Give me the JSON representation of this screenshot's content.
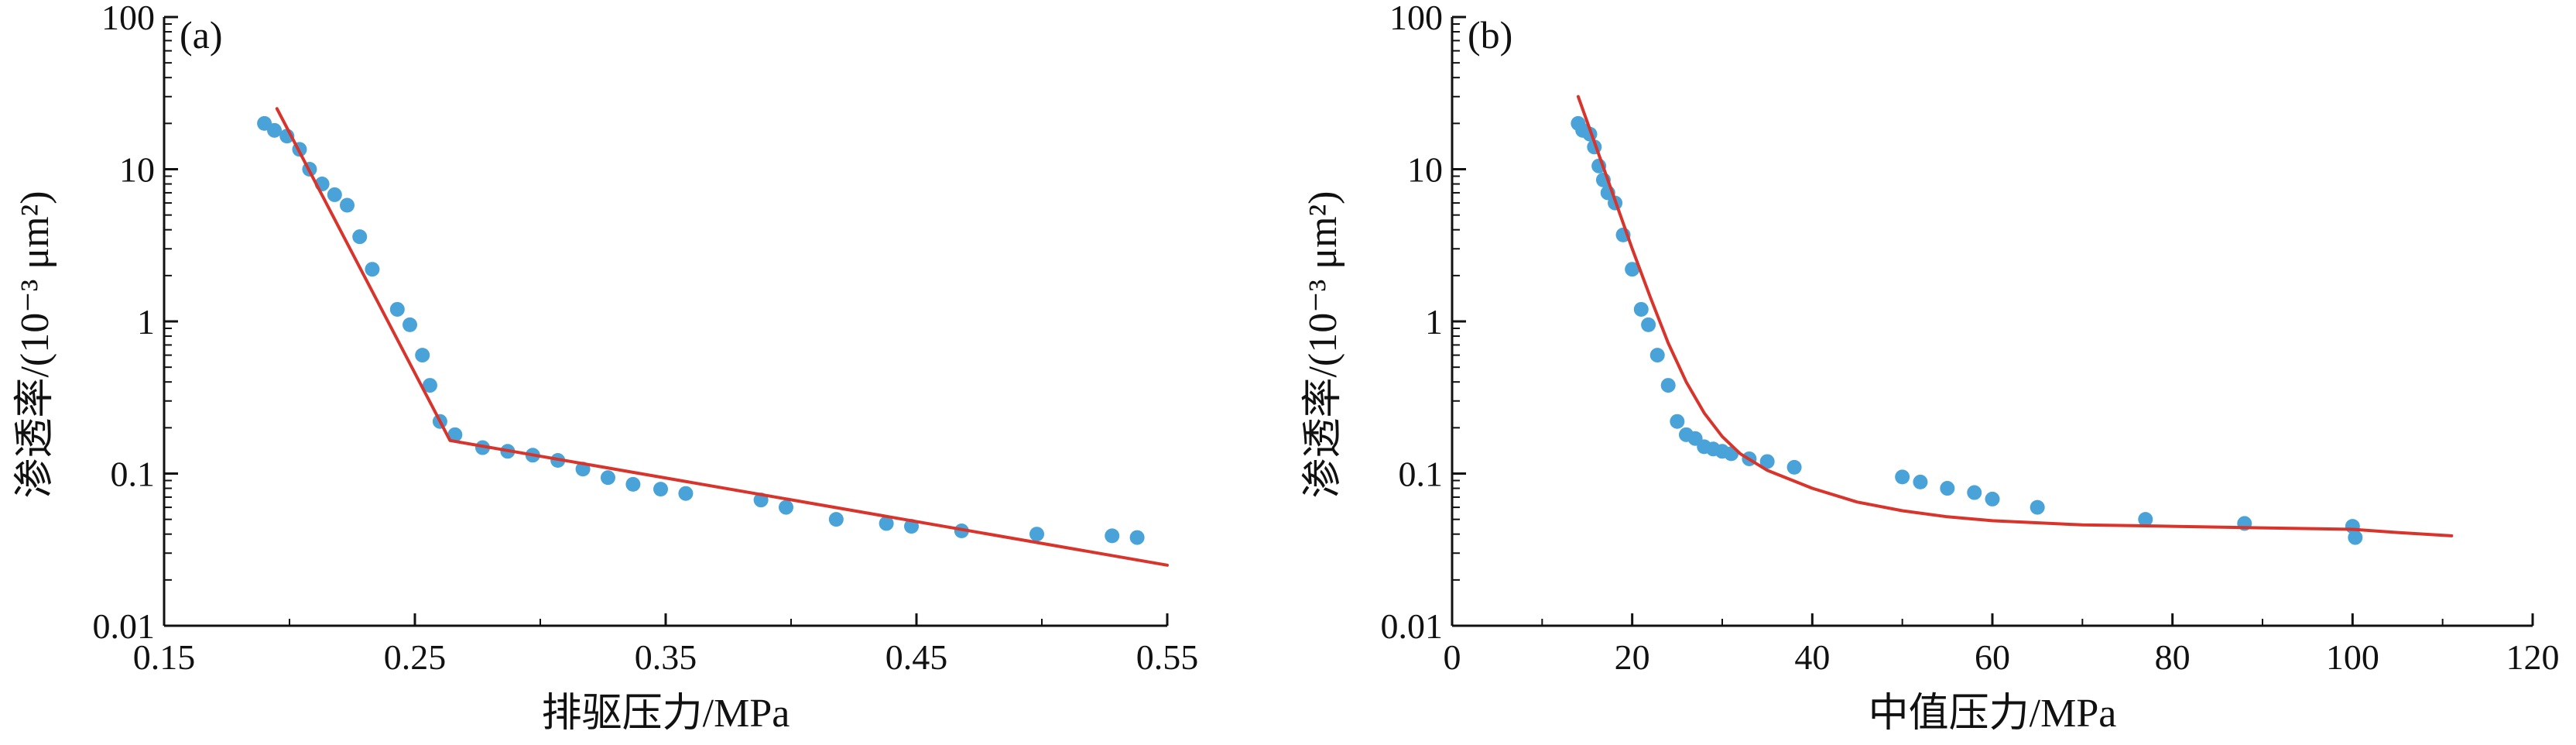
{
  "chart_data": [
    {
      "type": "scatter",
      "panel_label": "(a)",
      "xlabel": "排驱压力/MPa",
      "ylabel": "渗透率/(10⁻³ μm²)",
      "x_scale": "linear",
      "y_scale": "log",
      "xlim": [
        0.15,
        0.55
      ],
      "ylim": [
        0.01,
        100
      ],
      "x_ticks": [
        0.15,
        0.25,
        0.35,
        0.45,
        0.55
      ],
      "x_tick_labels": [
        "0.15",
        "0.25",
        "0.35",
        "0.45",
        "0.55"
      ],
      "y_ticks": [
        0.01,
        0.1,
        1,
        10,
        100
      ],
      "y_tick_labels": [
        "0.01",
        "0.1",
        "1",
        "10",
        "100"
      ],
      "grid": false,
      "series": [
        {
          "kind": "points",
          "color": "#4aa3d8",
          "points": [
            [
              0.19,
              20
            ],
            [
              0.194,
              18
            ],
            [
              0.199,
              16.5
            ],
            [
              0.204,
              13.5
            ],
            [
              0.208,
              10
            ],
            [
              0.213,
              8
            ],
            [
              0.218,
              6.8
            ],
            [
              0.223,
              5.8
            ],
            [
              0.228,
              3.6
            ],
            [
              0.233,
              2.2
            ],
            [
              0.243,
              1.2
            ],
            [
              0.248,
              0.95
            ],
            [
              0.253,
              0.6
            ],
            [
              0.256,
              0.38
            ],
            [
              0.26,
              0.22
            ],
            [
              0.266,
              0.18
            ],
            [
              0.277,
              0.148
            ],
            [
              0.287,
              0.14
            ],
            [
              0.297,
              0.132
            ],
            [
              0.307,
              0.122
            ],
            [
              0.317,
              0.107
            ],
            [
              0.327,
              0.094
            ],
            [
              0.337,
              0.085
            ],
            [
              0.348,
              0.079
            ],
            [
              0.358,
              0.074
            ],
            [
              0.388,
              0.067
            ],
            [
              0.398,
              0.06
            ],
            [
              0.418,
              0.05
            ],
            [
              0.438,
              0.047
            ],
            [
              0.448,
              0.045
            ],
            [
              0.468,
              0.042
            ],
            [
              0.498,
              0.04
            ],
            [
              0.528,
              0.039
            ],
            [
              0.538,
              0.038
            ]
          ]
        },
        {
          "kind": "line",
          "color": "#d9342b",
          "points": [
            [
              0.195,
              25
            ],
            [
              0.264,
              0.165
            ],
            [
              0.55,
              0.025
            ]
          ]
        }
      ]
    },
    {
      "type": "scatter",
      "panel_label": "(b)",
      "xlabel": "中值压力/MPa",
      "ylabel": "渗透率/(10⁻³ μm²)",
      "x_scale": "linear",
      "y_scale": "log",
      "xlim": [
        0,
        120
      ],
      "ylim": [
        0.01,
        100
      ],
      "x_ticks": [
        0,
        20,
        40,
        60,
        80,
        100,
        120
      ],
      "x_tick_labels": [
        "0",
        "20",
        "40",
        "60",
        "80",
        "100",
        "120"
      ],
      "y_ticks": [
        0.01,
        0.1,
        1,
        10,
        100
      ],
      "y_tick_labels": [
        "0.01",
        "0.1",
        "1",
        "10",
        "100"
      ],
      "grid": false,
      "series": [
        {
          "kind": "points",
          "color": "#4aa3d8",
          "points": [
            [
              14,
              20
            ],
            [
              14.5,
              18
            ],
            [
              15.3,
              17
            ],
            [
              15.8,
              14
            ],
            [
              16.3,
              10.5
            ],
            [
              16.8,
              8.5
            ],
            [
              17.3,
              7
            ],
            [
              18.1,
              6
            ],
            [
              19,
              3.7
            ],
            [
              20,
              2.2
            ],
            [
              21,
              1.2
            ],
            [
              21.8,
              0.95
            ],
            [
              22.8,
              0.6
            ],
            [
              24,
              0.38
            ],
            [
              25,
              0.22
            ],
            [
              26,
              0.18
            ],
            [
              27,
              0.17
            ],
            [
              28,
              0.15
            ],
            [
              29,
              0.145
            ],
            [
              30,
              0.14
            ],
            [
              31,
              0.135
            ],
            [
              33,
              0.125
            ],
            [
              35,
              0.12
            ],
            [
              38,
              0.11
            ],
            [
              50,
              0.095
            ],
            [
              52,
              0.088
            ],
            [
              55,
              0.08
            ],
            [
              58,
              0.075
            ],
            [
              60,
              0.068
            ],
            [
              65,
              0.06
            ],
            [
              77,
              0.05
            ],
            [
              88,
              0.047
            ],
            [
              100,
              0.045
            ],
            [
              100.3,
              0.038
            ]
          ]
        },
        {
          "kind": "curve",
          "color": "#d9342b",
          "points": [
            [
              14,
              30
            ],
            [
              16,
              14
            ],
            [
              18,
              6.5
            ],
            [
              20,
              3.0
            ],
            [
              22,
              1.45
            ],
            [
              24,
              0.72
            ],
            [
              26,
              0.4
            ],
            [
              28,
              0.25
            ],
            [
              30,
              0.175
            ],
            [
              32,
              0.135
            ],
            [
              35,
              0.105
            ],
            [
              40,
              0.08
            ],
            [
              45,
              0.065
            ],
            [
              50,
              0.057
            ],
            [
              55,
              0.052
            ],
            [
              60,
              0.049
            ],
            [
              70,
              0.046
            ],
            [
              80,
              0.045
            ],
            [
              90,
              0.044
            ],
            [
              100,
              0.043
            ],
            [
              105,
              0.041
            ],
            [
              111,
              0.039
            ]
          ]
        }
      ]
    }
  ]
}
